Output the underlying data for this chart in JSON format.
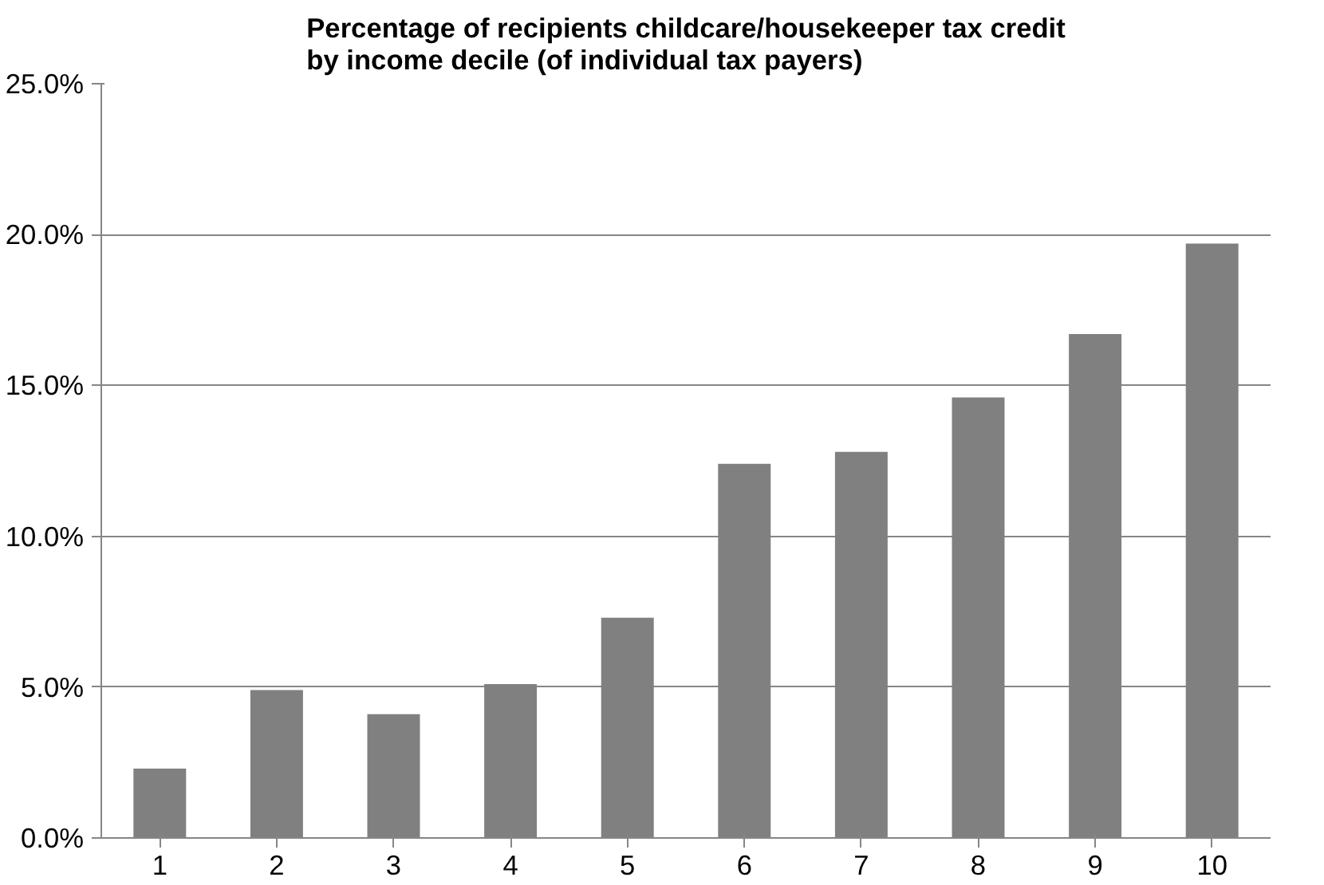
{
  "chart_data": {
    "type": "bar",
    "title": "Percentage of recipients childcare/housekeeper tax credit\nby income decile (of individual tax payers)",
    "categories": [
      "1",
      "2",
      "3",
      "4",
      "5",
      "6",
      "7",
      "8",
      "9",
      "10"
    ],
    "values": [
      2.3,
      4.9,
      4.1,
      5.1,
      7.3,
      12.4,
      12.8,
      14.6,
      16.7,
      19.7
    ],
    "color": "#808080",
    "ylim": [
      0,
      25
    ],
    "yticks": [
      {
        "value": 0,
        "label": "0.0%"
      },
      {
        "value": 5,
        "label": "5.0%"
      },
      {
        "value": 10,
        "label": "10.0%"
      },
      {
        "value": 15,
        "label": "15.0%"
      },
      {
        "value": 20,
        "label": "20.0%"
      },
      {
        "value": 25,
        "label": "25.0%"
      }
    ],
    "grid": "y"
  }
}
